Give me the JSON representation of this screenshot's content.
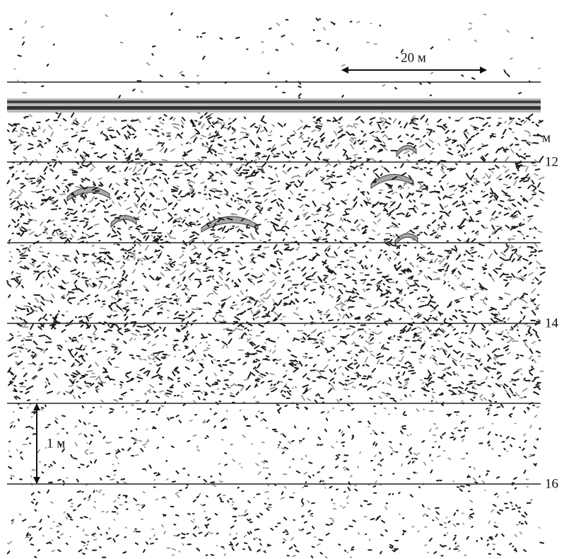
{
  "scale_bar": {
    "label": "20 м"
  },
  "depth_axis": {
    "unit": "м",
    "labels": [
      "12",
      "14",
      "16"
    ]
  },
  "depth_scale": {
    "label": "1 м"
  }
}
